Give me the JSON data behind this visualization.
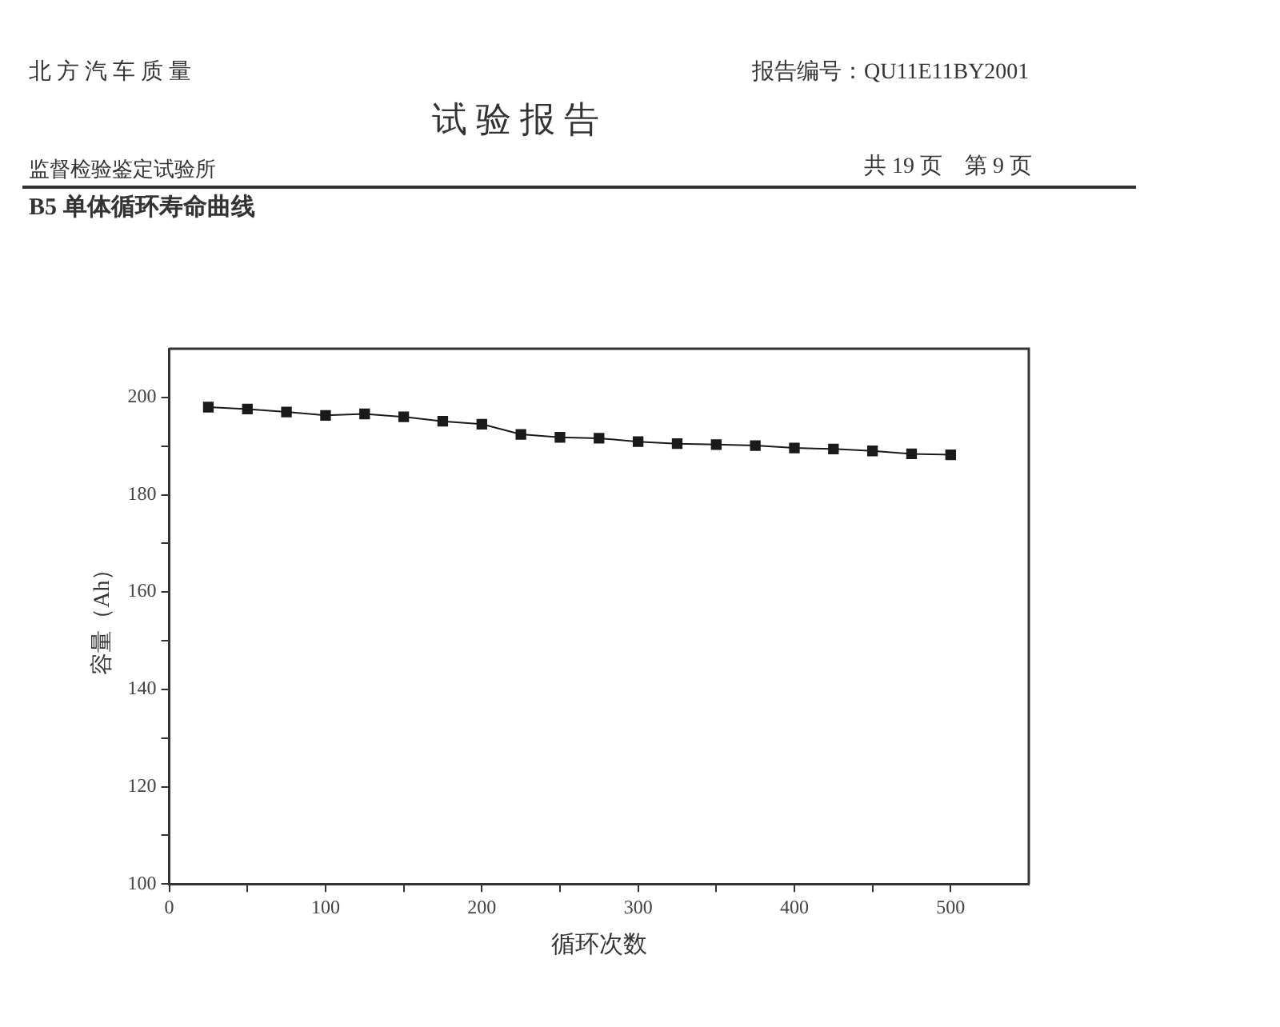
{
  "chart_data": {
    "type": "line",
    "title": "B5 单体循环寿命曲线",
    "annotations": [
      "北 方 汽 车 质 量",
      "报告编号：QU11E11BY2001",
      "试 验 报 告",
      "监督检验鉴定试验所",
      "共 19 页　第 9 页"
    ],
    "xlabel": "循环次数",
    "ylabel": "容量（Ah）",
    "x": [
      25,
      50,
      75,
      100,
      125,
      150,
      175,
      200,
      225,
      250,
      275,
      300,
      325,
      350,
      375,
      400,
      425,
      450,
      475,
      500
    ],
    "series": [
      {
        "color": "#1a1a1a",
        "values": [
          198.0,
          197.6,
          197.0,
          196.3,
          196.6,
          196.0,
          195.1,
          194.5,
          192.4,
          191.8,
          191.6,
          190.9,
          190.5,
          190.3,
          190.1,
          189.6,
          189.4,
          189.0,
          188.4,
          188.2
        ]
      }
    ],
    "xlim": [
      0,
      550
    ],
    "xticks": [
      0,
      {
        "value": 50,
        "label": null
      },
      100,
      {
        "value": 150,
        "label": null
      },
      200,
      {
        "value": 250,
        "label": null
      },
      300,
      {
        "value": 350,
        "label": null
      },
      400,
      {
        "value": 450,
        "label": null
      },
      500
    ],
    "ylim": [
      100,
      210
    ],
    "yticks": [
      100,
      {
        "value": 110,
        "label": null
      },
      120,
      {
        "value": 130,
        "label": null
      },
      140,
      {
        "value": 150,
        "label": null
      },
      160,
      {
        "value": 170,
        "label": null
      },
      180,
      {
        "value": 190,
        "label": null
      },
      200
    ],
    "grid": false,
    "legend": false,
    "marker": "square",
    "line_style": "solid"
  }
}
